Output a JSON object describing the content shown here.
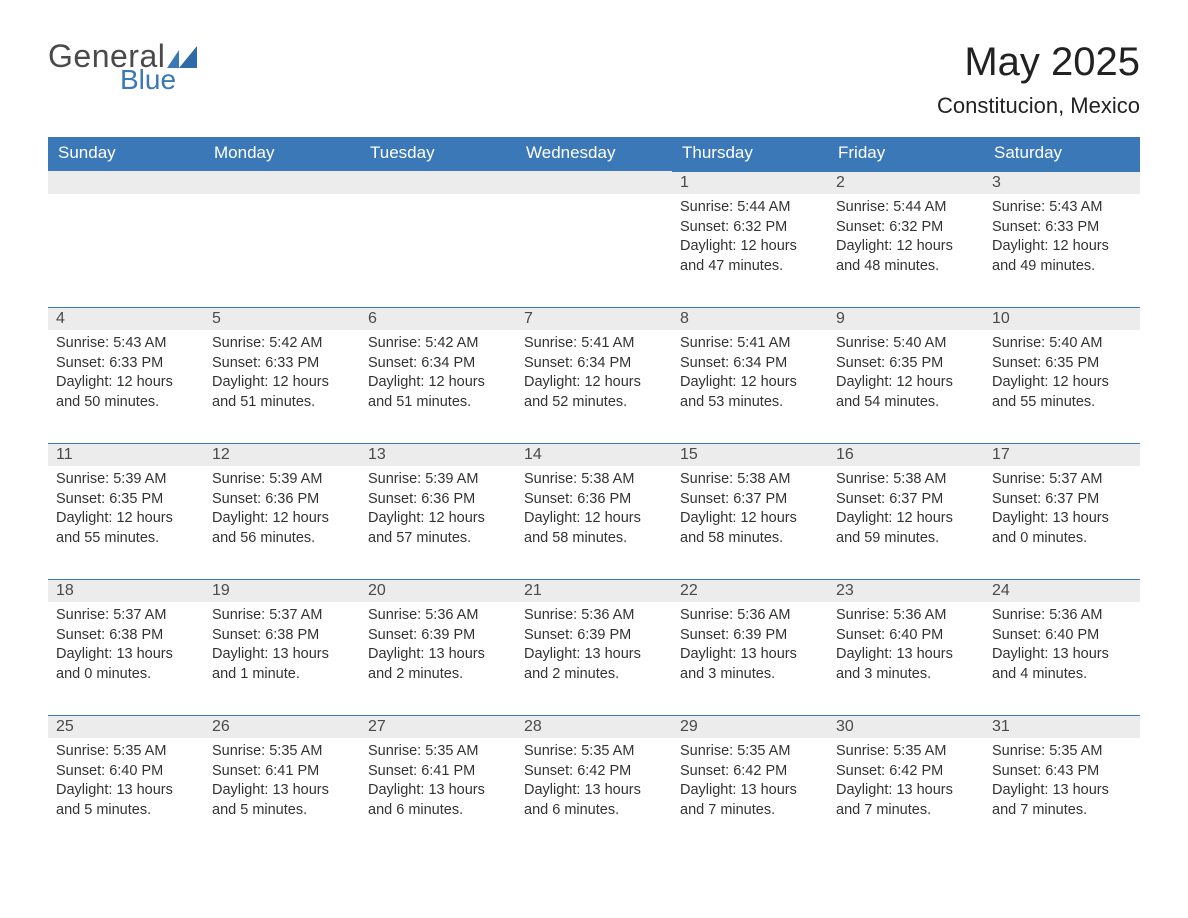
{
  "logo": {
    "general": "General",
    "blue": "Blue"
  },
  "title": "May 2025",
  "subtitle": "Constitucion, Mexico",
  "colors": {
    "header_bg": "#3b78b8",
    "header_text": "#ffffff",
    "daynum_bg": "#ececec",
    "daynum_border": "#3b78b8",
    "body_text": "#333333",
    "page_bg": "#ffffff",
    "logo_gray": "#4a4a4a",
    "logo_blue": "#3b78b8"
  },
  "weekdays": [
    "Sunday",
    "Monday",
    "Tuesday",
    "Wednesday",
    "Thursday",
    "Friday",
    "Saturday"
  ],
  "weeks": [
    [
      null,
      null,
      null,
      null,
      {
        "n": "1",
        "sunrise": "Sunrise: 5:44 AM",
        "sunset": "Sunset: 6:32 PM",
        "day1": "Daylight: 12 hours",
        "day2": "and 47 minutes."
      },
      {
        "n": "2",
        "sunrise": "Sunrise: 5:44 AM",
        "sunset": "Sunset: 6:32 PM",
        "day1": "Daylight: 12 hours",
        "day2": "and 48 minutes."
      },
      {
        "n": "3",
        "sunrise": "Sunrise: 5:43 AM",
        "sunset": "Sunset: 6:33 PM",
        "day1": "Daylight: 12 hours",
        "day2": "and 49 minutes."
      }
    ],
    [
      {
        "n": "4",
        "sunrise": "Sunrise: 5:43 AM",
        "sunset": "Sunset: 6:33 PM",
        "day1": "Daylight: 12 hours",
        "day2": "and 50 minutes."
      },
      {
        "n": "5",
        "sunrise": "Sunrise: 5:42 AM",
        "sunset": "Sunset: 6:33 PM",
        "day1": "Daylight: 12 hours",
        "day2": "and 51 minutes."
      },
      {
        "n": "6",
        "sunrise": "Sunrise: 5:42 AM",
        "sunset": "Sunset: 6:34 PM",
        "day1": "Daylight: 12 hours",
        "day2": "and 51 minutes."
      },
      {
        "n": "7",
        "sunrise": "Sunrise: 5:41 AM",
        "sunset": "Sunset: 6:34 PM",
        "day1": "Daylight: 12 hours",
        "day2": "and 52 minutes."
      },
      {
        "n": "8",
        "sunrise": "Sunrise: 5:41 AM",
        "sunset": "Sunset: 6:34 PM",
        "day1": "Daylight: 12 hours",
        "day2": "and 53 minutes."
      },
      {
        "n": "9",
        "sunrise": "Sunrise: 5:40 AM",
        "sunset": "Sunset: 6:35 PM",
        "day1": "Daylight: 12 hours",
        "day2": "and 54 minutes."
      },
      {
        "n": "10",
        "sunrise": "Sunrise: 5:40 AM",
        "sunset": "Sunset: 6:35 PM",
        "day1": "Daylight: 12 hours",
        "day2": "and 55 minutes."
      }
    ],
    [
      {
        "n": "11",
        "sunrise": "Sunrise: 5:39 AM",
        "sunset": "Sunset: 6:35 PM",
        "day1": "Daylight: 12 hours",
        "day2": "and 55 minutes."
      },
      {
        "n": "12",
        "sunrise": "Sunrise: 5:39 AM",
        "sunset": "Sunset: 6:36 PM",
        "day1": "Daylight: 12 hours",
        "day2": "and 56 minutes."
      },
      {
        "n": "13",
        "sunrise": "Sunrise: 5:39 AM",
        "sunset": "Sunset: 6:36 PM",
        "day1": "Daylight: 12 hours",
        "day2": "and 57 minutes."
      },
      {
        "n": "14",
        "sunrise": "Sunrise: 5:38 AM",
        "sunset": "Sunset: 6:36 PM",
        "day1": "Daylight: 12 hours",
        "day2": "and 58 minutes."
      },
      {
        "n": "15",
        "sunrise": "Sunrise: 5:38 AM",
        "sunset": "Sunset: 6:37 PM",
        "day1": "Daylight: 12 hours",
        "day2": "and 58 minutes."
      },
      {
        "n": "16",
        "sunrise": "Sunrise: 5:38 AM",
        "sunset": "Sunset: 6:37 PM",
        "day1": "Daylight: 12 hours",
        "day2": "and 59 minutes."
      },
      {
        "n": "17",
        "sunrise": "Sunrise: 5:37 AM",
        "sunset": "Sunset: 6:37 PM",
        "day1": "Daylight: 13 hours",
        "day2": "and 0 minutes."
      }
    ],
    [
      {
        "n": "18",
        "sunrise": "Sunrise: 5:37 AM",
        "sunset": "Sunset: 6:38 PM",
        "day1": "Daylight: 13 hours",
        "day2": "and 0 minutes."
      },
      {
        "n": "19",
        "sunrise": "Sunrise: 5:37 AM",
        "sunset": "Sunset: 6:38 PM",
        "day1": "Daylight: 13 hours",
        "day2": "and 1 minute."
      },
      {
        "n": "20",
        "sunrise": "Sunrise: 5:36 AM",
        "sunset": "Sunset: 6:39 PM",
        "day1": "Daylight: 13 hours",
        "day2": "and 2 minutes."
      },
      {
        "n": "21",
        "sunrise": "Sunrise: 5:36 AM",
        "sunset": "Sunset: 6:39 PM",
        "day1": "Daylight: 13 hours",
        "day2": "and 2 minutes."
      },
      {
        "n": "22",
        "sunrise": "Sunrise: 5:36 AM",
        "sunset": "Sunset: 6:39 PM",
        "day1": "Daylight: 13 hours",
        "day2": "and 3 minutes."
      },
      {
        "n": "23",
        "sunrise": "Sunrise: 5:36 AM",
        "sunset": "Sunset: 6:40 PM",
        "day1": "Daylight: 13 hours",
        "day2": "and 3 minutes."
      },
      {
        "n": "24",
        "sunrise": "Sunrise: 5:36 AM",
        "sunset": "Sunset: 6:40 PM",
        "day1": "Daylight: 13 hours",
        "day2": "and 4 minutes."
      }
    ],
    [
      {
        "n": "25",
        "sunrise": "Sunrise: 5:35 AM",
        "sunset": "Sunset: 6:40 PM",
        "day1": "Daylight: 13 hours",
        "day2": "and 5 minutes."
      },
      {
        "n": "26",
        "sunrise": "Sunrise: 5:35 AM",
        "sunset": "Sunset: 6:41 PM",
        "day1": "Daylight: 13 hours",
        "day2": "and 5 minutes."
      },
      {
        "n": "27",
        "sunrise": "Sunrise: 5:35 AM",
        "sunset": "Sunset: 6:41 PM",
        "day1": "Daylight: 13 hours",
        "day2": "and 6 minutes."
      },
      {
        "n": "28",
        "sunrise": "Sunrise: 5:35 AM",
        "sunset": "Sunset: 6:42 PM",
        "day1": "Daylight: 13 hours",
        "day2": "and 6 minutes."
      },
      {
        "n": "29",
        "sunrise": "Sunrise: 5:35 AM",
        "sunset": "Sunset: 6:42 PM",
        "day1": "Daylight: 13 hours",
        "day2": "and 7 minutes."
      },
      {
        "n": "30",
        "sunrise": "Sunrise: 5:35 AM",
        "sunset": "Sunset: 6:42 PM",
        "day1": "Daylight: 13 hours",
        "day2": "and 7 minutes."
      },
      {
        "n": "31",
        "sunrise": "Sunrise: 5:35 AM",
        "sunset": "Sunset: 6:43 PM",
        "day1": "Daylight: 13 hours",
        "day2": "and 7 minutes."
      }
    ]
  ]
}
